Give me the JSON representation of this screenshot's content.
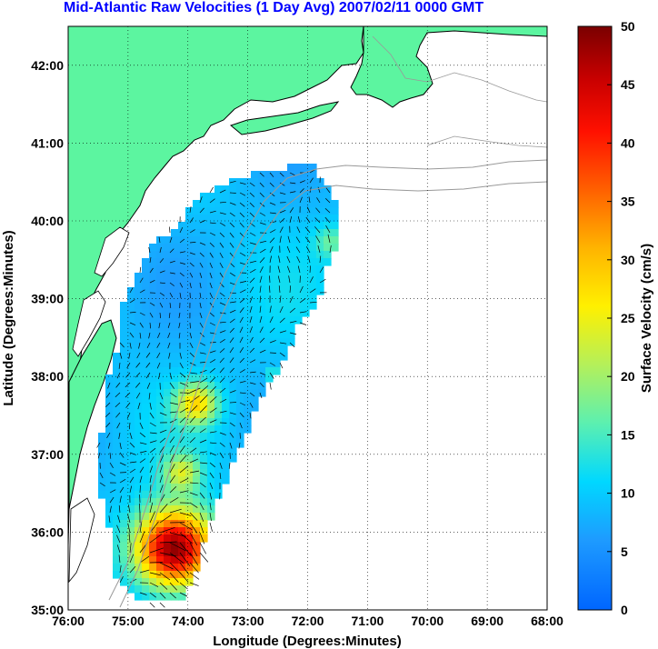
{
  "title": "Mid-Atlantic Raw Velocities (1 Day Avg) 2007/02/11 0000 GMT",
  "map": {
    "xlabel": "Longitude (Degrees:Minutes)",
    "ylabel": "Latitude (Degrees:Minutes)",
    "lon_ticks": [
      "76:00",
      "75:00",
      "74:00",
      "73:00",
      "72:00",
      "71:00",
      "70:00",
      "69:00",
      "68:00"
    ],
    "lat_ticks": [
      "35:00",
      "36:00",
      "37:00",
      "38:00",
      "39:00",
      "40:00",
      "41:00",
      "42:00"
    ],
    "lon_range": [
      -76,
      -68
    ],
    "lat_range": [
      35,
      42.5
    ],
    "grid": true
  },
  "colorbar": {
    "label": "Surface Velocity (cm/s)",
    "ticks": [
      "0",
      "5",
      "10",
      "15",
      "20",
      "25",
      "30",
      "35",
      "40",
      "45",
      "50"
    ],
    "range": [
      0,
      50
    ]
  },
  "colors": {
    "land": "#5cf5a0",
    "title": "#0000ff",
    "coast": "#000000",
    "bathymetry": "#999999"
  }
}
